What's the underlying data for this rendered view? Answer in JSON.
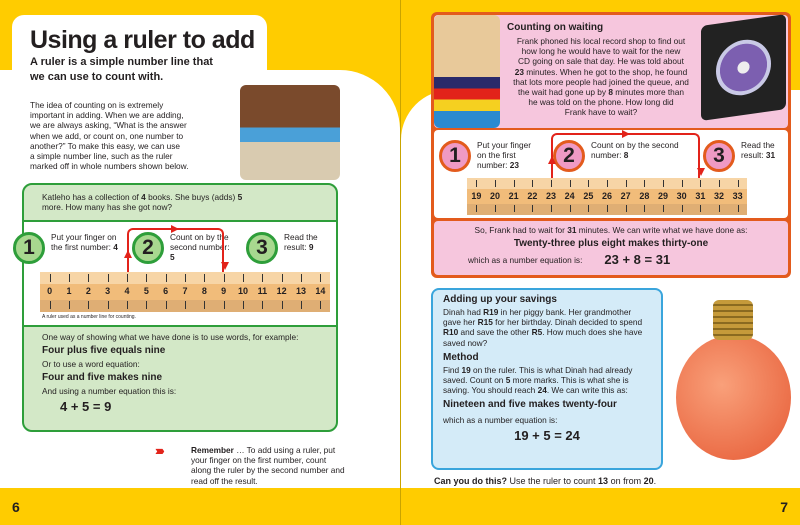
{
  "left": {
    "title": "Using a ruler to add",
    "subtitle_1": "A ruler is a simple number line that",
    "subtitle_2": "we can use to count with.",
    "intro": [
      "The idea of counting on is extremely",
      "important in adding. When we are adding,",
      "we are always asking, “What is the answer",
      "when we add, or count on, one number to",
      "another?” To make this easy, we can use",
      "a simple number line, such as the ruler",
      "marked off in whole numbers shown below."
    ],
    "question": {
      "pre": "Katleho has a collection of ",
      "n1": "4",
      "mid": " books. She buys (adds) ",
      "n2": "5",
      "post": " more. How many has she got now?"
    },
    "steps": [
      {
        "n": "1",
        "text": "Put your finger on the first number: ",
        "val": "4"
      },
      {
        "n": "2",
        "text": "Count on by the second number: ",
        "val": "5"
      },
      {
        "n": "3",
        "text": "Read the result: ",
        "val": "9"
      }
    ],
    "ruler": {
      "start": 0,
      "end": 14,
      "from": 4,
      "to": 9
    },
    "caption": "A ruler used as a number line for counting.",
    "words_intro": "One way of showing what we have done is to use words, for example:",
    "words": "Four plus five equals nine",
    "word_eq_intro": "Or to use a word equation:",
    "word_eq": "Four and five makes nine",
    "num_eq_intro": "And using a number equation this is:",
    "num_eq": "4 + 5 = 9",
    "remember_label": "Remember",
    "remember_text": " … To add using a ruler, put your finger on the first number, count along the ruler by the second number and read off the result.",
    "page_number": "6"
  },
  "right": {
    "heading": "Counting on waiting",
    "story": [
      "Frank phoned his local record shop to find out",
      "how long he would have to wait for the new",
      "CD going on sale that day. He was told about",
      "<b>23</b> minutes. When he got to the shop, he found",
      "that lots more people had joined the queue, and",
      "the wait had gone up by <b>8</b> minutes more than",
      "he was told on the phone. How long did",
      "Frank have to wait?"
    ],
    "steps": [
      {
        "n": "1",
        "text": "Put your finger on the first number: ",
        "val": "23"
      },
      {
        "n": "2",
        "text": "Count on by the second number: ",
        "val": "8"
      },
      {
        "n": "3",
        "text": "Read the result: ",
        "val": "31"
      }
    ],
    "ruler": {
      "start": 19,
      "end": 33,
      "from": 23,
      "to": 31
    },
    "answer": {
      "pre": "So, Frank had to wait for ",
      "val": "31",
      "post": " minutes. We can write what we have done as:"
    },
    "words": "Twenty-three plus eight makes thirty-one",
    "num_eq_intro": "which as a number equation is:",
    "num_eq": "23 + 8 = 31",
    "savings": {
      "heading": "Adding up your savings",
      "text": "Dinah had <b>R19</b> in her piggy bank. Her grandmother gave her <b>R15</b> for her birthday. Dinah decided to spend <b>R10</b> and save the other <b>R5</b>. How much does she have saved now?",
      "method_heading": "Method",
      "method": "Find <b>19</b> on the ruler. This is what Dinah had already saved. Count on <b>5</b> more marks. This is what she is saving. You should reach <b>24</b>. We can write this as:",
      "words": "Nineteen and five makes twenty-four",
      "num_eq_intro": "which as a number equation is:",
      "num_eq": "19 + 5 = 24"
    },
    "challenge_label": "Can you do this?",
    "challenge": {
      "pre": " Use the ruler to count ",
      "a": "13",
      "mid": " on from ",
      "b": "20",
      "post": "."
    },
    "page_number": "7"
  },
  "colors": {
    "yellow": "#ffcc00",
    "green": "#2e9e3a",
    "light_green": "#d3e8c7",
    "orange": "#e35b1d",
    "pink": "#f6c6dd",
    "blue_border": "#3aa5dc",
    "light_blue": "#d4ebf8",
    "arrow_red": "#e2231a"
  }
}
